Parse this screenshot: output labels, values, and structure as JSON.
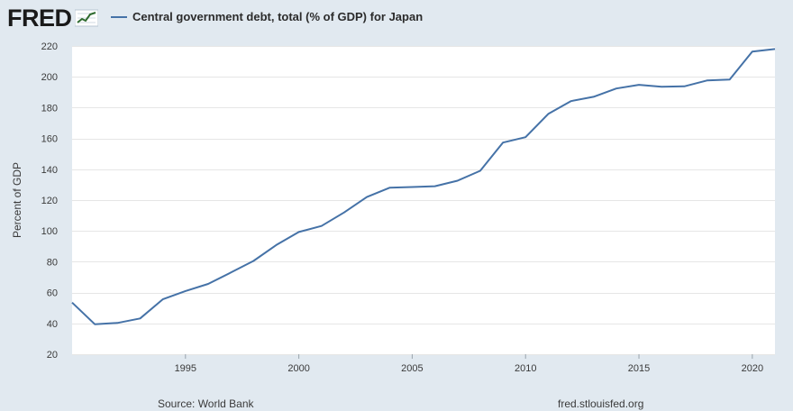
{
  "brand": {
    "logo_text": "FRED",
    "logo_icon": "trend-line-icon",
    "logo_icon_color": "#2f6b2f"
  },
  "legend": {
    "label": "Central government debt, total (% of GDP) for Japan",
    "color": "#4572a7"
  },
  "footer": {
    "source": "Source: World Bank",
    "site": "fred.stlouisfed.org"
  },
  "chart_data": {
    "type": "line",
    "title": "",
    "xlabel": "",
    "ylabel": "Percent of GDP",
    "xlim": [
      1990,
      2021
    ],
    "ylim": [
      20,
      220
    ],
    "y_ticks": [
      20,
      40,
      60,
      80,
      100,
      120,
      140,
      160,
      180,
      200,
      220
    ],
    "x_ticks": [
      1995,
      2000,
      2005,
      2010,
      2015,
      2020
    ],
    "grid": true,
    "legend_position": "top",
    "series": [
      {
        "color": "#4572a7",
        "x": [
          1990,
          1991,
          1992,
          1993,
          1994,
          1995,
          1996,
          1997,
          1998,
          1999,
          2000,
          2001,
          2002,
          2003,
          2004,
          2005,
          2006,
          2007,
          2008,
          2009,
          2010,
          2011,
          2012,
          2013,
          2014,
          2015,
          2016,
          2017,
          2018,
          2019,
          2020,
          2021
        ],
        "values": [
          53.5,
          39.5,
          40.3,
          43.2,
          55.6,
          61.0,
          65.6,
          73.0,
          80.5,
          90.8,
          99.3,
          103.2,
          112.0,
          122.0,
          128.0,
          128.5,
          129.0,
          132.6,
          139.0,
          157.3,
          160.8,
          175.9,
          184.2,
          187.0,
          192.4,
          194.8,
          193.5,
          193.8,
          197.6,
          198.2,
          216.3,
          218.0
        ]
      }
    ]
  }
}
